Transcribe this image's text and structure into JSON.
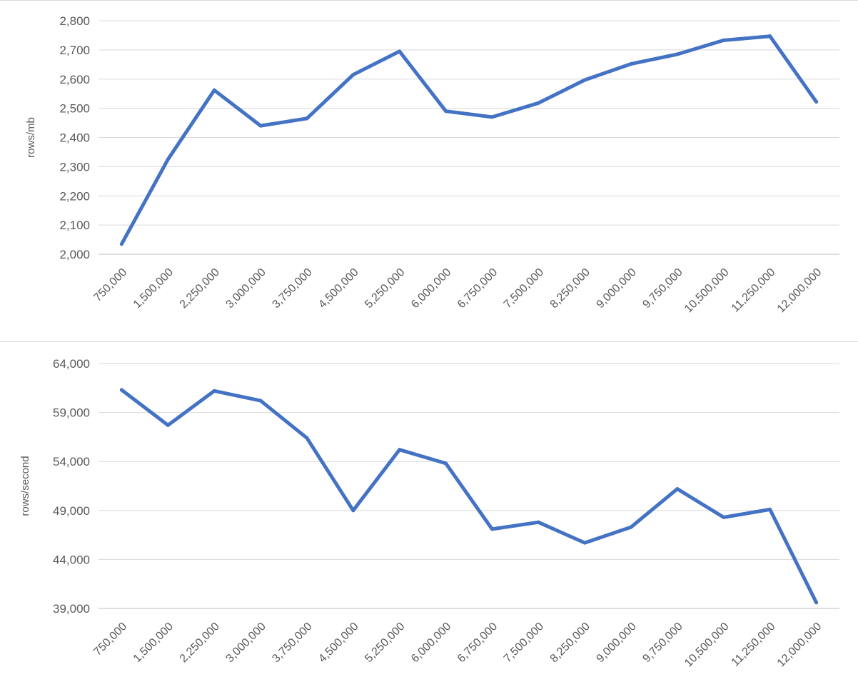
{
  "accent_color": "#4472C4",
  "chart_data": [
    {
      "type": "line",
      "ylabel": "rows/mb",
      "xlabel": "",
      "title": "",
      "ylim": [
        2000,
        2800
      ],
      "y_ticks": [
        2000,
        2100,
        2200,
        2300,
        2400,
        2500,
        2600,
        2700,
        2800
      ],
      "y_tick_labels": [
        "2,000",
        "2,100",
        "2,200",
        "2,300",
        "2,400",
        "2,500",
        "2,600",
        "2,700",
        "2,800"
      ],
      "categories": [
        "750,000",
        "1,500,000",
        "2,250,000",
        "3,000,000",
        "3,750,000",
        "4,500,000",
        "5,250,000",
        "6,000,000",
        "6,750,000",
        "7,500,000",
        "8,250,000",
        "9,000,000",
        "9,750,000",
        "10,500,000",
        "11,250,000",
        "12,000,000"
      ],
      "series": [
        {
          "values": [
            2035,
            2325,
            2562,
            2440,
            2465,
            2615,
            2695,
            2490,
            2470,
            2518,
            2597,
            2652,
            2685,
            2733,
            2747,
            2522
          ],
          "color": "#4472C4"
        }
      ],
      "grid": true,
      "legend": "none"
    },
    {
      "type": "line",
      "ylabel": "rows/second",
      "xlabel": "",
      "title": "",
      "ylim": [
        39000,
        64000
      ],
      "y_ticks": [
        39000,
        44000,
        49000,
        54000,
        59000,
        64000
      ],
      "y_tick_labels": [
        "39,000",
        "44,000",
        "49,000",
        "54,000",
        "59,000",
        "64,000"
      ],
      "categories": [
        "750,000",
        "1,500,000",
        "2,250,000",
        "3,000,000",
        "3,750,000",
        "4,500,000",
        "5,250,000",
        "6,000,000",
        "6,750,000",
        "7,500,000",
        "8,250,000",
        "9,000,000",
        "9,750,000",
        "10,500,000",
        "11,250,000",
        "12,000,000"
      ],
      "series": [
        {
          "values": [
            61300,
            57700,
            61200,
            60200,
            56400,
            49000,
            55200,
            53800,
            47100,
            47800,
            45700,
            47300,
            51200,
            48300,
            49100,
            39600
          ],
          "color": "#4472C4"
        }
      ],
      "grid": true,
      "legend": "none"
    }
  ]
}
